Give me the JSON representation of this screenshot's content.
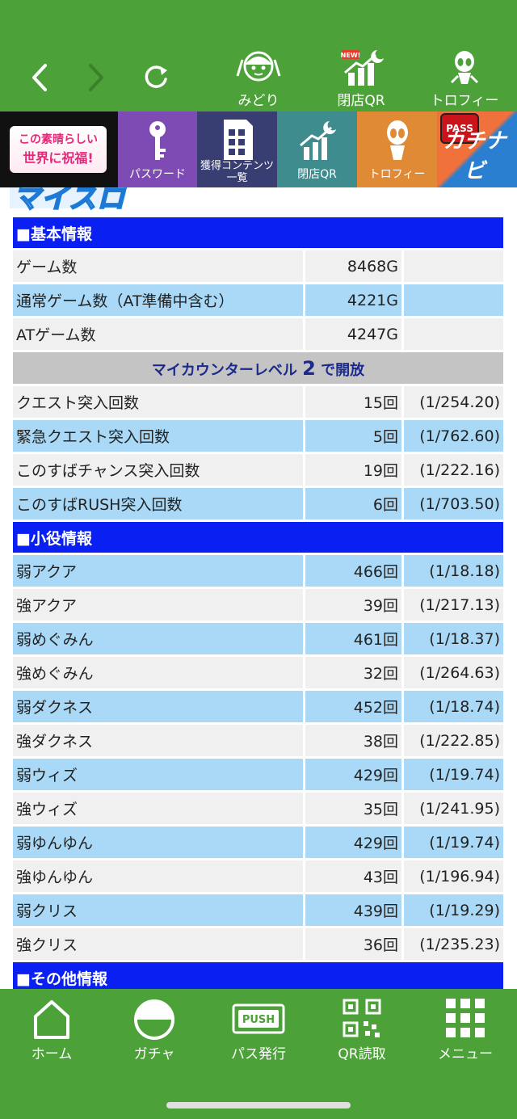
{
  "top_nav": {
    "midori_label": "みどり",
    "closing_qr_label": "閉店QR",
    "new_badge": "NEW!",
    "trophy_label": "トロフィー"
  },
  "banner": {
    "logo_text_1": "この素晴らしい",
    "logo_text_2": "世界に祝福!",
    "password_label": "パスワード",
    "contents_label": "獲得コンテンツ一覧",
    "closing_qr_label": "閉店QR",
    "trophy_label": "トロフィー",
    "pass_badge": "PASS",
    "kachinabi_label": "カチナビ"
  },
  "header_logo": "マイスロ",
  "sections": {
    "basic": "■基本情報",
    "level_prefix": "マイカウンターレベル ",
    "level_number": "2",
    "level_suffix": " で開放",
    "small_role": "■小役情報",
    "other": "■その他情報"
  },
  "basic_rows": [
    {
      "name": "ゲーム数",
      "value": "8468G",
      "prob": ""
    },
    {
      "name": "通常ゲーム数（AT準備中含む）",
      "value": "4221G",
      "prob": ""
    },
    {
      "name": "ATゲーム数",
      "value": "4247G",
      "prob": ""
    }
  ],
  "level_rows": [
    {
      "name": "クエスト突入回数",
      "value": "15回",
      "prob": "(1/254.20)"
    },
    {
      "name": "緊急クエスト突入回数",
      "value": "5回",
      "prob": "(1/762.60)"
    },
    {
      "name": "このすばチャンス突入回数",
      "value": "19回",
      "prob": "(1/222.16)"
    },
    {
      "name": "このすばRUSH突入回数",
      "value": "6回",
      "prob": "(1/703.50)"
    }
  ],
  "role_rows": [
    {
      "name": "弱アクア",
      "value": "466回",
      "prob": "(1/18.18)"
    },
    {
      "name": "強アクア",
      "value": "39回",
      "prob": "(1/217.13)"
    },
    {
      "name": "弱めぐみん",
      "value": "461回",
      "prob": "(1/18.37)"
    },
    {
      "name": "強めぐみん",
      "value": "32回",
      "prob": "(1/264.63)"
    },
    {
      "name": "弱ダクネス",
      "value": "452回",
      "prob": "(1/18.74)"
    },
    {
      "name": "強ダクネス",
      "value": "38回",
      "prob": "(1/222.85)"
    },
    {
      "name": "弱ウィズ",
      "value": "429回",
      "prob": "(1/19.74)"
    },
    {
      "name": "強ウィズ",
      "value": "35回",
      "prob": "(1/241.95)"
    },
    {
      "name": "弱ゆんゆん",
      "value": "429回",
      "prob": "(1/19.74)"
    },
    {
      "name": "強ゆんゆん",
      "value": "43回",
      "prob": "(1/196.94)"
    },
    {
      "name": "弱クリス",
      "value": "439回",
      "prob": "(1/19.29)"
    },
    {
      "name": "強クリス",
      "value": "36回",
      "prob": "(1/235.23)"
    }
  ],
  "bottom_nav": {
    "home": "ホーム",
    "gacha": "ガチャ",
    "pass": "パス発行",
    "push_badge": "PUSH",
    "qr_read": "QR読取",
    "menu": "メニュー"
  }
}
